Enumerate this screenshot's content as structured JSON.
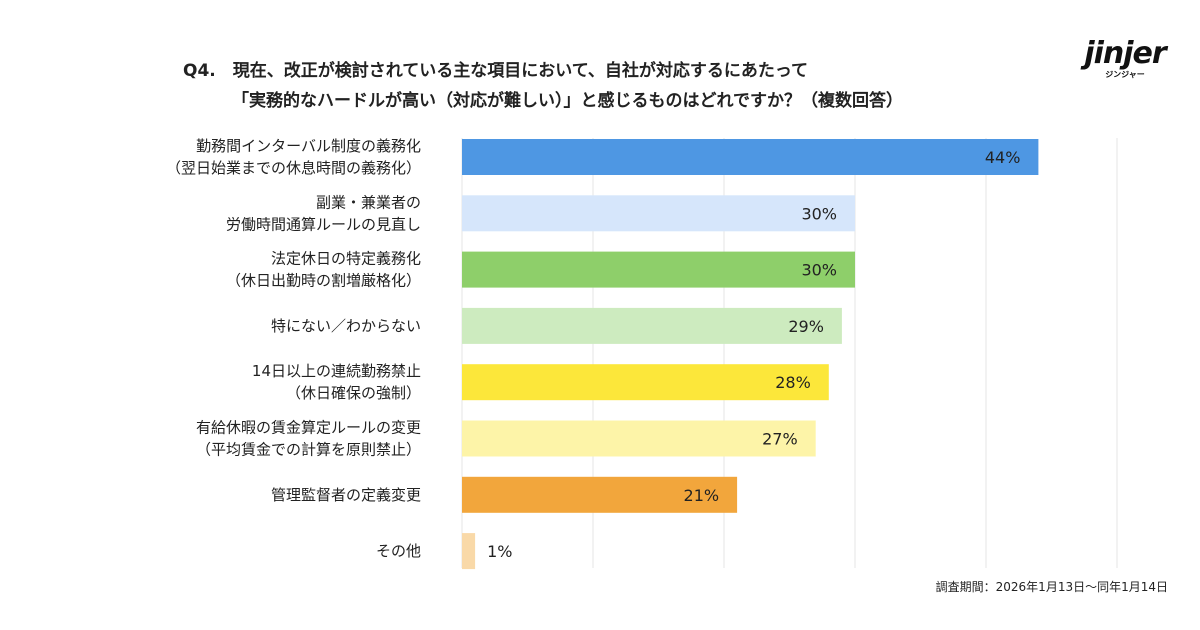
{
  "header": {
    "title_line1": "Q4.　現在、改正が検討されている主な項目において、自社が対応するにあたって",
    "title_line2": "「実務的なハードルが高い（対応が難しい）」と感じるものはどれですか？（複数回答）"
  },
  "logo": {
    "wordmark": "jinjer",
    "kana": "ジンジャー"
  },
  "footnote": "調査期間：2026年1月13日〜同年1月14日",
  "chart_data": {
    "type": "bar",
    "orientation": "horizontal",
    "unit": "%",
    "xlim": [
      0,
      50
    ],
    "grid": true,
    "categories": [
      [
        "勤務間インターバル制度の義務化",
        "（翌日始業までの休息時間の義務化）"
      ],
      [
        "副業・兼業者の",
        "労働時間通算ルールの見直し"
      ],
      [
        "法定休日の特定義務化",
        "（休日出勤時の割増厳格化）"
      ],
      [
        "特にない／わからない"
      ],
      [
        "14日以上の連続勤務禁止",
        "（休日確保の強制）"
      ],
      [
        "有給休暇の賃金算定ルールの変更",
        "（平均賃金での計算を原則禁止）"
      ],
      [
        "管理監督者の定義変更"
      ],
      [
        "その他"
      ]
    ],
    "values": [
      44,
      30,
      30,
      29,
      28,
      27,
      21,
      1
    ],
    "value_labels": [
      "44%",
      "30%",
      "30%",
      "29%",
      "28%",
      "27%",
      "21%",
      "1%"
    ],
    "colors": [
      "#4e97e3",
      "#d6e6fb",
      "#8ecf6a",
      "#cdebbf",
      "#fce73a",
      "#fdf4a8",
      "#f2a63c",
      "#f9d9a8"
    ]
  }
}
